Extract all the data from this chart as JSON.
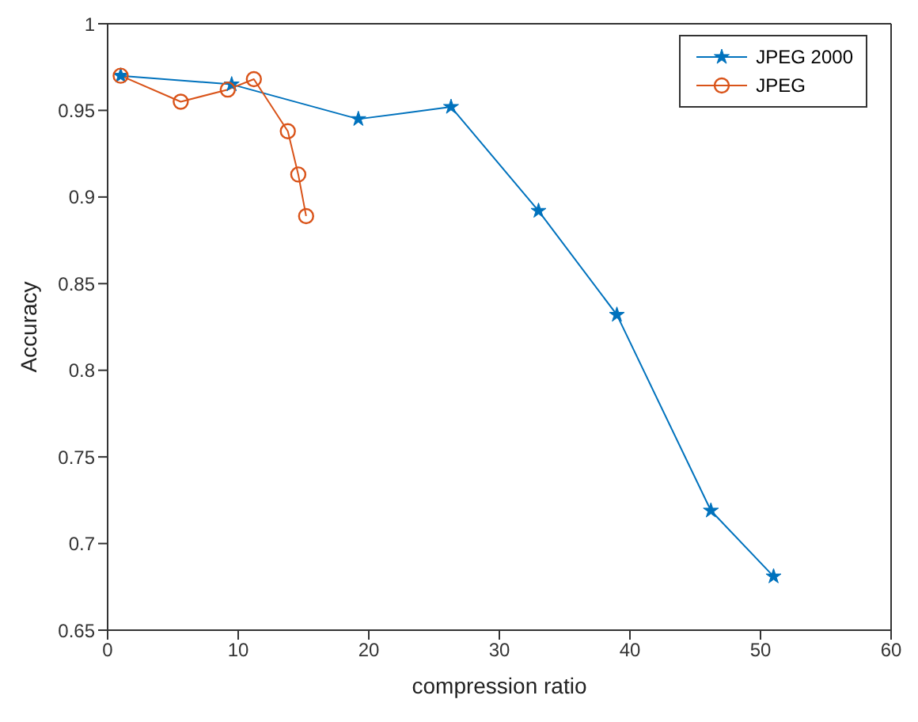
{
  "chart_data": {
    "type": "line",
    "xlabel": "compression ratio",
    "ylabel": "Accuracy",
    "xlim": [
      0,
      60
    ],
    "xticks": [
      0,
      10,
      20,
      30,
      40,
      50,
      60
    ],
    "ylim": [
      0.65,
      1
    ],
    "yticks": [
      0.65,
      0.7,
      0.75,
      0.8,
      0.85,
      0.9,
      0.95,
      1
    ],
    "legend": "top right",
    "line_style": "solid",
    "series": [
      {
        "name": "JPEG 2000",
        "color": "#0072bd",
        "marker": "star",
        "x": [
          1,
          9.5,
          19.2,
          26.3,
          33,
          39,
          46.2,
          51
        ],
        "values": [
          0.97,
          0.965,
          0.945,
          0.952,
          0.892,
          0.832,
          0.719,
          0.681
        ]
      },
      {
        "name": "JPEG",
        "color": "#d95319",
        "marker": "circle",
        "x": [
          1,
          5.6,
          9.2,
          11.2,
          13.8,
          14.6,
          15.2
        ],
        "values": [
          0.97,
          0.955,
          0.962,
          0.968,
          0.938,
          0.913,
          0.889
        ]
      }
    ]
  }
}
